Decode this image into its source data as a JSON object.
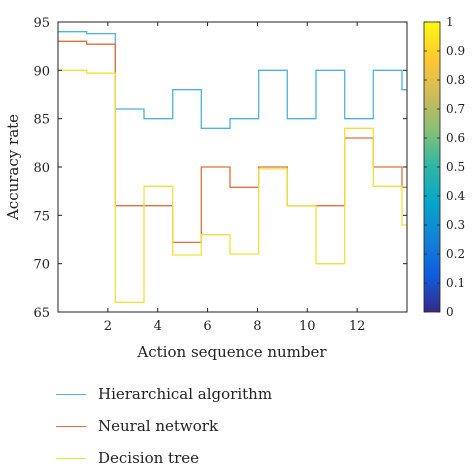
{
  "chart_data": {
    "type": "line",
    "step": true,
    "xlabel": "Action sequence number",
    "ylabel": "Accuracy rate",
    "xlim": [
      0,
      14
    ],
    "ylim": [
      65,
      95
    ],
    "xticks": [
      2,
      4,
      6,
      8,
      10,
      12
    ],
    "yticks": [
      65,
      70,
      75,
      80,
      85,
      90,
      95
    ],
    "x": [
      0,
      1.15,
      2.3,
      3.45,
      4.6,
      5.75,
      6.9,
      8.05,
      9.2,
      10.35,
      11.5,
      12.65,
      13.8
    ],
    "series": [
      {
        "name": "Hierarchical algorithm",
        "color": "#4cb2e0",
        "values": [
          94,
          93.8,
          86,
          85,
          88,
          84,
          85,
          90,
          85,
          90,
          85,
          90,
          88
        ]
      },
      {
        "name": "Neural network",
        "color": "#e0703a",
        "values": [
          93,
          92.7,
          76,
          76,
          72.2,
          80,
          77.9,
          80,
          76,
          76,
          83,
          80,
          77.9
        ]
      },
      {
        "name": "Decision tree",
        "color": "#f0e23c",
        "values": [
          90,
          89.7,
          66,
          78,
          70.9,
          73,
          71,
          79.8,
          76,
          70,
          84,
          78,
          74
        ]
      }
    ],
    "colorbar": {
      "range": [
        0,
        1
      ],
      "ticks": [
        "0",
        "0.1",
        "0.2",
        "0.3",
        "0.4",
        "0.5",
        "0.6",
        "0.7",
        "0.8",
        "0.9",
        "1"
      ],
      "colormap": "parula",
      "colors": [
        "#352a87",
        "#0f5cdd",
        "#1481d6",
        "#06a4ca",
        "#2eb7a4",
        "#87bf77",
        "#d1bb59",
        "#fec832",
        "#f9fb0e"
      ]
    },
    "legend_position": "bottom",
    "grid": false
  }
}
